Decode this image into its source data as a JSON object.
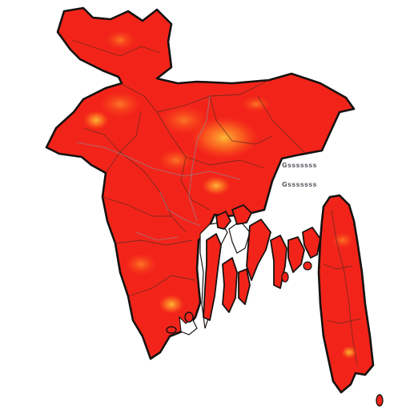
{
  "map": {
    "labels": [
      {
        "id": "label-line-1",
        "text": "Gsssssss"
      },
      {
        "id": "label-line-2",
        "text": "Gsssssss"
      }
    ],
    "colors": {
      "land": "#f2241a",
      "land_dark": "#d8150f",
      "highlight": "#ffb02e",
      "outline": "#161210",
      "internal_border": "#5a2a1c",
      "river": "#8a8f9a",
      "background": "#ffffff"
    },
    "style": "choropleth-heat-map"
  }
}
